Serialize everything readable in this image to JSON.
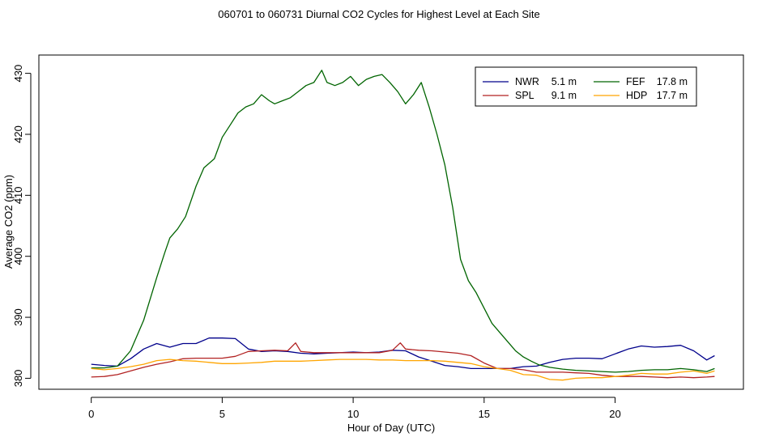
{
  "chart_data": {
    "type": "line",
    "title": "060701  to  060731 Diurnal CO2 Cycles for Highest Level at Each Site",
    "xlabel": "Hour of Day (UTC)",
    "ylabel": "Average CO2 (ppm)",
    "xlim": [
      -2,
      24.9
    ],
    "ylim": [
      378.2,
      433
    ],
    "xticks": [
      0,
      5,
      10,
      15,
      20
    ],
    "xtick_labels": [
      "0",
      "5",
      "10",
      "15",
      "20"
    ],
    "yticks": [
      380,
      390,
      400,
      410,
      420,
      430
    ],
    "ytick_labels": [
      "380",
      "390",
      "400",
      "410",
      "420",
      "430"
    ],
    "legend_position": "top-right",
    "series": [
      {
        "name": "NWR",
        "height": "5.1 m",
        "color": "#00008b",
        "x": [
          0,
          0.5,
          1,
          1.5,
          2,
          2.5,
          3,
          3.5,
          4,
          4.5,
          5,
          5.5,
          6,
          6.5,
          7,
          7.5,
          8,
          8.5,
          9,
          9.5,
          10,
          10.5,
          11,
          11.5,
          12,
          12.5,
          13,
          13.5,
          14,
          14.5,
          15,
          15.5,
          16,
          16.5,
          17,
          17.5,
          18,
          18.5,
          19,
          19.5,
          20,
          20.5,
          21,
          21.5,
          22,
          22.5,
          23,
          23.5,
          23.8
        ],
        "values": [
          382.3,
          382.1,
          382.0,
          383.2,
          384.8,
          385.7,
          385.1,
          385.7,
          385.7,
          386.6,
          386.6,
          386.5,
          384.8,
          384.4,
          384.5,
          384.4,
          384.1,
          384.0,
          384.1,
          384.2,
          384.3,
          384.2,
          384.3,
          384.6,
          384.5,
          383.5,
          382.8,
          382.1,
          381.9,
          381.6,
          381.6,
          381.6,
          381.6,
          381.9,
          382.0,
          382.6,
          383.1,
          383.3,
          383.3,
          383.2,
          384.0,
          384.8,
          385.3,
          385.1,
          385.2,
          385.4,
          384.5,
          383.0,
          383.7
        ]
      },
      {
        "name": "SPL",
        "height": "9.1 m",
        "color": "#b22222",
        "x": [
          0,
          0.5,
          1,
          1.5,
          2,
          2.5,
          3,
          3.5,
          4,
          4.5,
          5,
          5.5,
          6,
          6.5,
          7,
          7.5,
          7.8,
          8,
          8.5,
          9,
          9.5,
          10,
          10.5,
          11,
          11.5,
          11.8,
          12,
          12.5,
          13,
          13.5,
          14,
          14.5,
          15,
          15.5,
          16,
          16.5,
          17,
          17.5,
          18,
          18.5,
          19,
          19.5,
          20,
          20.5,
          21,
          21.5,
          22,
          22.5,
          23,
          23.5,
          23.8
        ],
        "values": [
          380.2,
          380.3,
          380.6,
          381.2,
          381.8,
          382.3,
          382.7,
          383.2,
          383.3,
          383.3,
          383.3,
          383.6,
          384.4,
          384.5,
          384.6,
          384.5,
          385.8,
          384.4,
          384.2,
          384.2,
          384.2,
          384.2,
          384.2,
          384.2,
          384.6,
          385.8,
          384.8,
          384.6,
          384.5,
          384.3,
          384.1,
          383.7,
          382.5,
          381.6,
          381.6,
          381.4,
          381.0,
          381.0,
          381.0,
          380.9,
          380.8,
          380.5,
          380.3,
          380.3,
          380.3,
          380.2,
          380.1,
          380.2,
          380.1,
          380.2,
          380.3
        ]
      },
      {
        "name": "FEF",
        "height": "17.8 m",
        "color": "#006400",
        "x": [
          0,
          0.5,
          1,
          1.5,
          2,
          2.5,
          2.8,
          3,
          3.3,
          3.6,
          4,
          4.3,
          4.7,
          5,
          5.3,
          5.6,
          5.9,
          6.2,
          6.5,
          6.8,
          7,
          7.3,
          7.6,
          7.9,
          8.2,
          8.5,
          8.8,
          9,
          9.3,
          9.6,
          9.9,
          10.2,
          10.5,
          10.8,
          11.1,
          11.4,
          11.7,
          12,
          12.3,
          12.6,
          12.9,
          13.2,
          13.5,
          13.8,
          14.1,
          14.4,
          14.7,
          15,
          15.3,
          15.6,
          15.9,
          16.2,
          16.5,
          16.8,
          17.1,
          17.5,
          18,
          18.5,
          19,
          19.5,
          20,
          20.5,
          21,
          21.5,
          22,
          22.5,
          23,
          23.5,
          23.8
        ],
        "values": [
          381.7,
          381.7,
          382.0,
          384.5,
          389.5,
          396.5,
          400.5,
          403.0,
          404.5,
          406.5,
          411.5,
          414.5,
          416.0,
          419.5,
          421.5,
          423.5,
          424.5,
          425.0,
          426.5,
          425.5,
          425.0,
          425.5,
          426.0,
          427.0,
          428.0,
          428.5,
          430.5,
          428.5,
          428.0,
          428.5,
          429.5,
          428.0,
          429.0,
          429.5,
          429.8,
          428.5,
          427.0,
          425.0,
          426.5,
          428.5,
          424.5,
          420.0,
          415.0,
          408.0,
          399.5,
          396.0,
          394.0,
          391.5,
          389.0,
          387.5,
          386.0,
          384.5,
          383.5,
          382.8,
          382.2,
          381.8,
          381.5,
          381.3,
          381.2,
          381.1,
          381.0,
          381.1,
          381.3,
          381.4,
          381.4,
          381.6,
          381.4,
          381.1,
          381.6
        ]
      },
      {
        "name": "HDP",
        "height": "17.7 m",
        "color": "#ffa500",
        "x": [
          0,
          0.5,
          1,
          1.5,
          2,
          2.5,
          3,
          3.5,
          4,
          4.5,
          5,
          5.5,
          6,
          6.5,
          7,
          7.5,
          8,
          8.5,
          9,
          9.5,
          10,
          10.5,
          11,
          11.5,
          12,
          12.5,
          13,
          13.5,
          14,
          14.5,
          15,
          15.5,
          16,
          16.5,
          17,
          17.5,
          18,
          18.5,
          19,
          19.5,
          20,
          20.5,
          21,
          21.5,
          22,
          22.5,
          23,
          23.5,
          23.8
        ],
        "values": [
          381.6,
          381.4,
          381.6,
          381.9,
          382.3,
          382.9,
          383.1,
          382.9,
          382.8,
          382.6,
          382.4,
          382.4,
          382.5,
          382.6,
          382.8,
          382.8,
          382.8,
          382.9,
          383.0,
          383.1,
          383.1,
          383.1,
          383.0,
          383.0,
          382.9,
          382.9,
          382.9,
          382.8,
          382.6,
          382.4,
          381.9,
          381.6,
          381.3,
          380.6,
          380.5,
          379.8,
          379.7,
          380.0,
          380.1,
          380.1,
          380.3,
          380.5,
          380.8,
          380.7,
          380.7,
          381.0,
          381.2,
          380.8,
          381.2
        ]
      }
    ]
  }
}
